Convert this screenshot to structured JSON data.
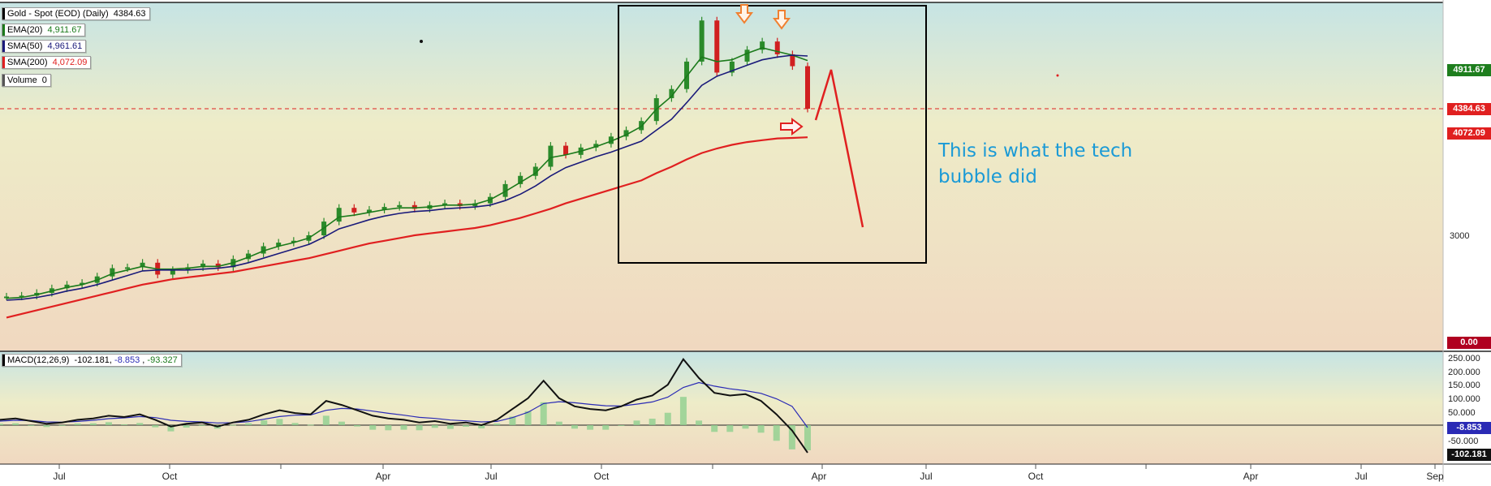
{
  "chart_data": [
    {
      "type": "line",
      "title": "Gold - Spot (EOD) (Daily) 4384.63",
      "legend": [
        {
          "label": "Gold - Spot (EOD) (Daily)",
          "value": "4384.63",
          "color": "#000000"
        },
        {
          "label": "EMA(20)",
          "value": "4,911.67",
          "color": "#1b7a1b"
        },
        {
          "label": "SMA(50)",
          "value": "4,961.61",
          "color": "#1a1a7a"
        },
        {
          "label": "SMA(200)",
          "value": "4,072.09",
          "color": "#e02020"
        },
        {
          "label": "Volume",
          "value": "0",
          "color": "#555555"
        }
      ],
      "price_tags": [
        {
          "value": "4911.67",
          "color": "#1e7e1e"
        },
        {
          "value": "4384.63",
          "color": "#e02020"
        },
        {
          "value": "4072.09",
          "color": "#e02020"
        },
        {
          "value": "0.00",
          "color": "#b00020"
        }
      ],
      "y_tick_labels": [
        "3000"
      ],
      "x_tick_labels": [
        "Jul",
        "Oct",
        "Apr",
        "Jul",
        "Oct",
        "Apr",
        "Jul",
        "Oct",
        "Apr",
        "Jul",
        "Sep"
      ],
      "series": [
        {
          "name": "Gold - Spot (EOD) (Daily)",
          "values": [
            2330,
            2340,
            2370,
            2420,
            2460,
            2480,
            2550,
            2640,
            2650,
            2700,
            2570,
            2620,
            2650,
            2690,
            2650,
            2740,
            2800,
            2880,
            2920,
            2940,
            3000,
            3150,
            3300,
            3250,
            3280,
            3310,
            3330,
            3290,
            3330,
            3350,
            3320,
            3350,
            3420,
            3560,
            3650,
            3750,
            3980,
            3880,
            3960,
            4000,
            4080,
            4150,
            4250,
            4500,
            4600,
            4900,
            5350,
            4780,
            4900,
            5030,
            5120,
            4980,
            4850,
            4384.63
          ]
        },
        {
          "name": "EMA(20)",
          "values": [
            2310,
            2320,
            2350,
            2390,
            2430,
            2460,
            2510,
            2580,
            2620,
            2660,
            2630,
            2630,
            2640,
            2660,
            2660,
            2700,
            2760,
            2830,
            2880,
            2920,
            2970,
            3080,
            3200,
            3220,
            3250,
            3280,
            3300,
            3300,
            3310,
            3330,
            3330,
            3340,
            3390,
            3480,
            3580,
            3680,
            3850,
            3880,
            3920,
            3970,
            4030,
            4100,
            4190,
            4380,
            4520,
            4740,
            4950,
            4900,
            4920,
            4990,
            5050,
            5010,
            4970,
            4911.67
          ]
        },
        {
          "name": "SMA(50)",
          "values": [
            2290,
            2300,
            2320,
            2350,
            2390,
            2420,
            2460,
            2510,
            2560,
            2610,
            2620,
            2620,
            2620,
            2630,
            2640,
            2660,
            2700,
            2750,
            2800,
            2850,
            2900,
            2980,
            3070,
            3120,
            3170,
            3210,
            3240,
            3260,
            3270,
            3290,
            3300,
            3310,
            3330,
            3380,
            3450,
            3540,
            3650,
            3740,
            3800,
            3860,
            3910,
            3970,
            4030,
            4150,
            4270,
            4450,
            4640,
            4740,
            4800,
            4860,
            4920,
            4950,
            4970,
            4961.61
          ]
        },
        {
          "name": "SMA(200)",
          "values": [
            2100,
            2140,
            2180,
            2220,
            2260,
            2300,
            2340,
            2380,
            2420,
            2460,
            2490,
            2520,
            2540,
            2560,
            2580,
            2600,
            2630,
            2660,
            2690,
            2720,
            2750,
            2790,
            2830,
            2870,
            2910,
            2940,
            2970,
            3000,
            3020,
            3040,
            3060,
            3080,
            3110,
            3150,
            3190,
            3240,
            3290,
            3350,
            3400,
            3450,
            3500,
            3550,
            3600,
            3680,
            3750,
            3830,
            3900,
            3950,
            3990,
            4020,
            4040,
            4060,
            4065,
            4072.09
          ]
        }
      ],
      "annotations": {
        "text": "This is what the tech bubble did",
        "text_lines": [
          "This is what the tech",
          "bubble did"
        ],
        "text_color": "#1a9ad6",
        "box_color": "#000000",
        "arrow_color": "#f08030",
        "projection_color": "#e02020"
      }
    },
    {
      "type": "line",
      "title": "MACD(12,26,9) -102.181 , -8.853 , -93.327",
      "legend": [
        {
          "label": "MACD(12,26,9)",
          "values": [
            "-102.181",
            "-8.853",
            "-93.327"
          ]
        }
      ],
      "y_tick_labels": [
        "250.000",
        "200.000",
        "150.000",
        "100.000",
        "50.000",
        "-50.000"
      ],
      "price_tags": [
        {
          "value": "-8.853",
          "color": "#2a2ab5"
        },
        {
          "value": "-102.181",
          "color": "#111111"
        }
      ],
      "series": [
        {
          "name": "MACD",
          "values": [
            20,
            25,
            15,
            5,
            10,
            20,
            25,
            35,
            30,
            40,
            20,
            -5,
            5,
            10,
            -5,
            10,
            20,
            40,
            55,
            45,
            40,
            90,
            75,
            55,
            35,
            25,
            20,
            10,
            15,
            5,
            10,
            0,
            20,
            60,
            100,
            165,
            100,
            70,
            60,
            55,
            70,
            95,
            110,
            150,
            245,
            175,
            120,
            110,
            115,
            90,
            40,
            -20,
            -102.181
          ]
        },
        {
          "name": "Signal",
          "values": [
            15,
            18,
            17,
            12,
            11,
            14,
            18,
            24,
            27,
            32,
            28,
            18,
            14,
            12,
            8,
            9,
            13,
            22,
            32,
            37,
            38,
            55,
            62,
            60,
            52,
            44,
            37,
            29,
            25,
            19,
            16,
            12,
            14,
            28,
            48,
            80,
            87,
            83,
            77,
            72,
            71,
            78,
            86,
            104,
            140,
            158,
            145,
            135,
            128,
            118,
            98,
            70,
            -8.853
          ]
        }
      ]
    }
  ]
}
